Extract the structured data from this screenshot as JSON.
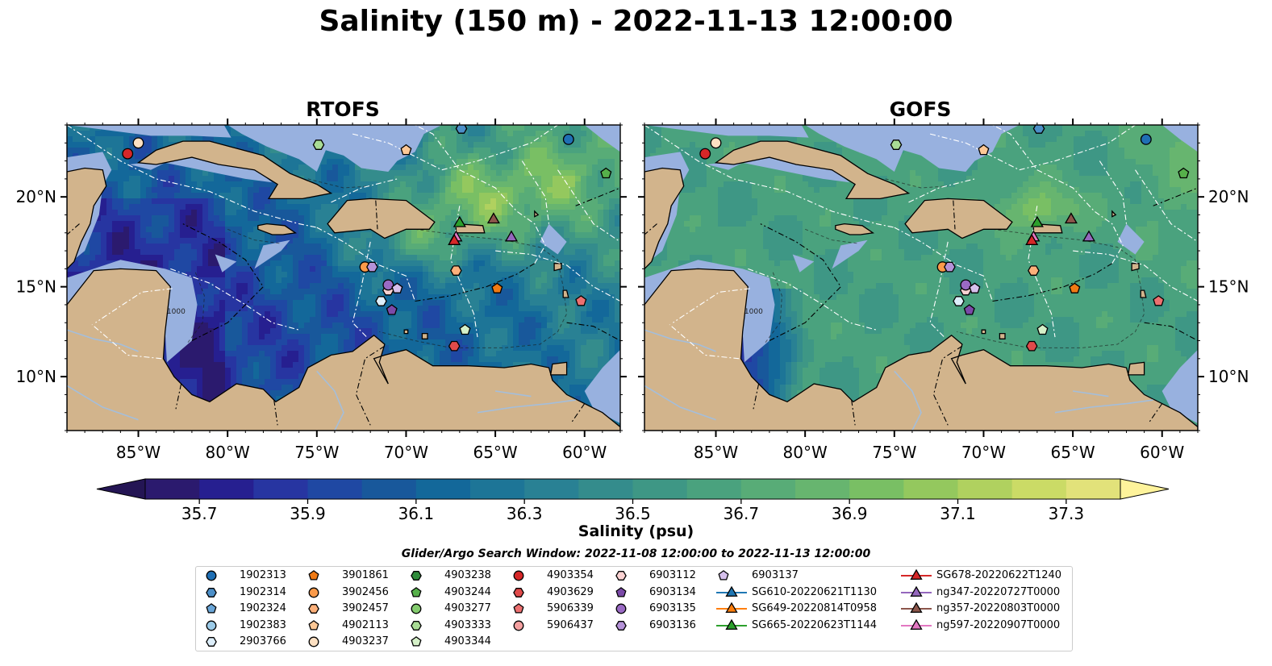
{
  "title": "Salinity (150 m) - 2022-11-13 12:00:00",
  "panels": [
    {
      "title": "RTOFS",
      "scheme": "rtofs"
    },
    {
      "title": "GOFS",
      "scheme": "gofs"
    }
  ],
  "map": {
    "lon_range": [
      -89,
      -58
    ],
    "lat_range": [
      7,
      24
    ],
    "lon_ticks": [
      -85,
      -80,
      -75,
      -70,
      -65,
      -60
    ],
    "lon_tick_labels": [
      "85°W",
      "80°W",
      "75°W",
      "70°W",
      "65°W",
      "60°W"
    ],
    "lat_ticks": [
      10,
      15,
      20
    ],
    "lat_tick_labels": [
      "10°N",
      "15°N",
      "20°N"
    ],
    "contour_label": "1000"
  },
  "colorbar": {
    "label": "Salinity (psu)",
    "min": 35.6,
    "max": 37.4,
    "step": 0.1,
    "ticks": [
      "35.7",
      "35.9",
      "36.1",
      "36.3",
      "36.5",
      "36.7",
      "36.9",
      "37.1",
      "37.3"
    ],
    "colors": [
      "#2b1a6e",
      "#261f90",
      "#2735a1",
      "#1f48a3",
      "#18589b",
      "#13689a",
      "#1d7597",
      "#298194",
      "#348c8c",
      "#3e9785",
      "#4aa27e",
      "#58ac77",
      "#67b56f",
      "#79bf64",
      "#94c85e",
      "#b0d15f",
      "#cbdb66",
      "#e2e27a"
    ],
    "extend_low": "#241554",
    "extend_high": "#fef39b"
  },
  "colors": {
    "land": "#d2b48c",
    "shelf": "#98b1df",
    "river": "#a4bedb"
  },
  "legend": {
    "title": "Glider/Argo Search Window: 2022-11-08 12:00:00 to 2022-11-13 12:00:00",
    "columns": [
      [
        {
          "label": "1902313",
          "marker": "circle",
          "color": "#1f6fb4"
        },
        {
          "label": "1902314",
          "marker": "hexagon",
          "color": "#4c8fc8"
        },
        {
          "label": "1902324",
          "marker": "pentagon",
          "color": "#6aa6d8"
        },
        {
          "label": "1902383",
          "marker": "circle",
          "color": "#9ccbe8"
        },
        {
          "label": "2903766",
          "marker": "hexagon",
          "color": "#ddeefa"
        }
      ],
      [
        {
          "label": "3901861",
          "marker": "pentagon",
          "color": "#f07a14"
        },
        {
          "label": "3902456",
          "marker": "circle",
          "color": "#fa9a4a"
        },
        {
          "label": "3902457",
          "marker": "hexagon",
          "color": "#fcb07a"
        },
        {
          "label": "4902113",
          "marker": "pentagon",
          "color": "#fdc896"
        },
        {
          "label": "4903237",
          "marker": "circle",
          "color": "#fde0c2"
        }
      ],
      [
        {
          "label": "4903238",
          "marker": "hexagon",
          "color": "#2e8b3a"
        },
        {
          "label": "4903244",
          "marker": "pentagon",
          "color": "#56b04a"
        },
        {
          "label": "4903277",
          "marker": "circle",
          "color": "#84cc6e"
        },
        {
          "label": "4903333",
          "marker": "hexagon",
          "color": "#a9dc95"
        },
        {
          "label": "4903344",
          "marker": "pentagon",
          "color": "#d5f0c8"
        }
      ],
      [
        {
          "label": "4903354",
          "marker": "circle",
          "color": "#d62728"
        },
        {
          "label": "4903629",
          "marker": "hexagon",
          "color": "#e04a4a"
        },
        {
          "label": "5906339",
          "marker": "pentagon",
          "color": "#ec7070"
        },
        {
          "label": "5906437",
          "marker": "circle",
          "color": "#f4a0a0"
        }
      ],
      [
        {
          "label": "6903112",
          "marker": "hexagon",
          "color": "#fbd2d2"
        },
        {
          "label": "6903134",
          "marker": "pentagon",
          "color": "#7b4aa8"
        },
        {
          "label": "6903135",
          "marker": "circle",
          "color": "#9a6ac4"
        },
        {
          "label": "6903136",
          "marker": "hexagon",
          "color": "#b592d8"
        }
      ],
      [
        {
          "label": "6903137",
          "marker": "pentagon",
          "color": "#d6c0ec"
        },
        {
          "label": "SG610-20220621T1130",
          "marker": "triangle",
          "color": "#1f77b4",
          "line": true
        },
        {
          "label": "SG649-20220814T0958",
          "marker": "triangle",
          "color": "#ff7f0e",
          "line": true
        },
        {
          "label": "SG665-20220623T1144",
          "marker": "triangle",
          "color": "#2ca02c",
          "line": true
        }
      ],
      [
        {
          "label": "SG678-20220622T1240",
          "marker": "triangle",
          "color": "#d62728",
          "line": true
        },
        {
          "label": "ng347-20220727T0000",
          "marker": "triangle",
          "color": "#9467bd",
          "line": true
        },
        {
          "label": "ng357-20220803T0000",
          "marker": "triangle",
          "color": "#8c564b",
          "line": true
        },
        {
          "label": "ng597-20220907T0000",
          "marker": "triangle",
          "color": "#e377c2",
          "line": true
        }
      ]
    ]
  },
  "floats": [
    {
      "label": "1902313",
      "lon": -60.9,
      "lat": 23.2
    },
    {
      "label": "1902314",
      "lon": -66.9,
      "lat": 23.8
    },
    {
      "label": "4903237",
      "lon": -85.0,
      "lat": 23.0
    },
    {
      "label": "4903354",
      "lon": -85.6,
      "lat": 22.4
    },
    {
      "label": "4903333",
      "lon": -74.9,
      "lat": 22.9
    },
    {
      "label": "4902113",
      "lon": -70.0,
      "lat": 22.6
    },
    {
      "label": "4903244",
      "lon": -58.8,
      "lat": 21.3
    },
    {
      "label": "SG665-20220623T1144",
      "lon": -67.0,
      "lat": 18.6
    },
    {
      "label": "ng357-20220803T0000",
      "lon": -65.1,
      "lat": 18.8
    },
    {
      "label": "ng597-20220907T0000",
      "lon": -67.2,
      "lat": 17.8
    },
    {
      "label": "SG678-20220622T1240",
      "lon": -67.3,
      "lat": 17.6
    },
    {
      "label": "ng347-20220727T0000",
      "lon": -64.1,
      "lat": 17.8
    },
    {
      "label": "3902456",
      "lon": -72.3,
      "lat": 16.1
    },
    {
      "label": "6903136",
      "lon": -71.9,
      "lat": 16.1
    },
    {
      "label": "3902457",
      "lon": -67.2,
      "lat": 15.9
    },
    {
      "label": "6903112",
      "lon": -71.0,
      "lat": 14.8
    },
    {
      "label": "6903135",
      "lon": -71.0,
      "lat": 15.1
    },
    {
      "label": "6903137",
      "lon": -70.5,
      "lat": 14.9
    },
    {
      "label": "3901861",
      "lon": -64.9,
      "lat": 14.9
    },
    {
      "label": "2903766",
      "lon": -71.4,
      "lat": 14.2
    },
    {
      "label": "6903134",
      "lon": -70.8,
      "lat": 13.7
    },
    {
      "label": "5906339",
      "lon": -60.2,
      "lat": 14.2
    },
    {
      "label": "4903344",
      "lon": -66.7,
      "lat": 12.6
    },
    {
      "label": "4903629",
      "lon": -67.3,
      "lat": 11.7
    }
  ]
}
